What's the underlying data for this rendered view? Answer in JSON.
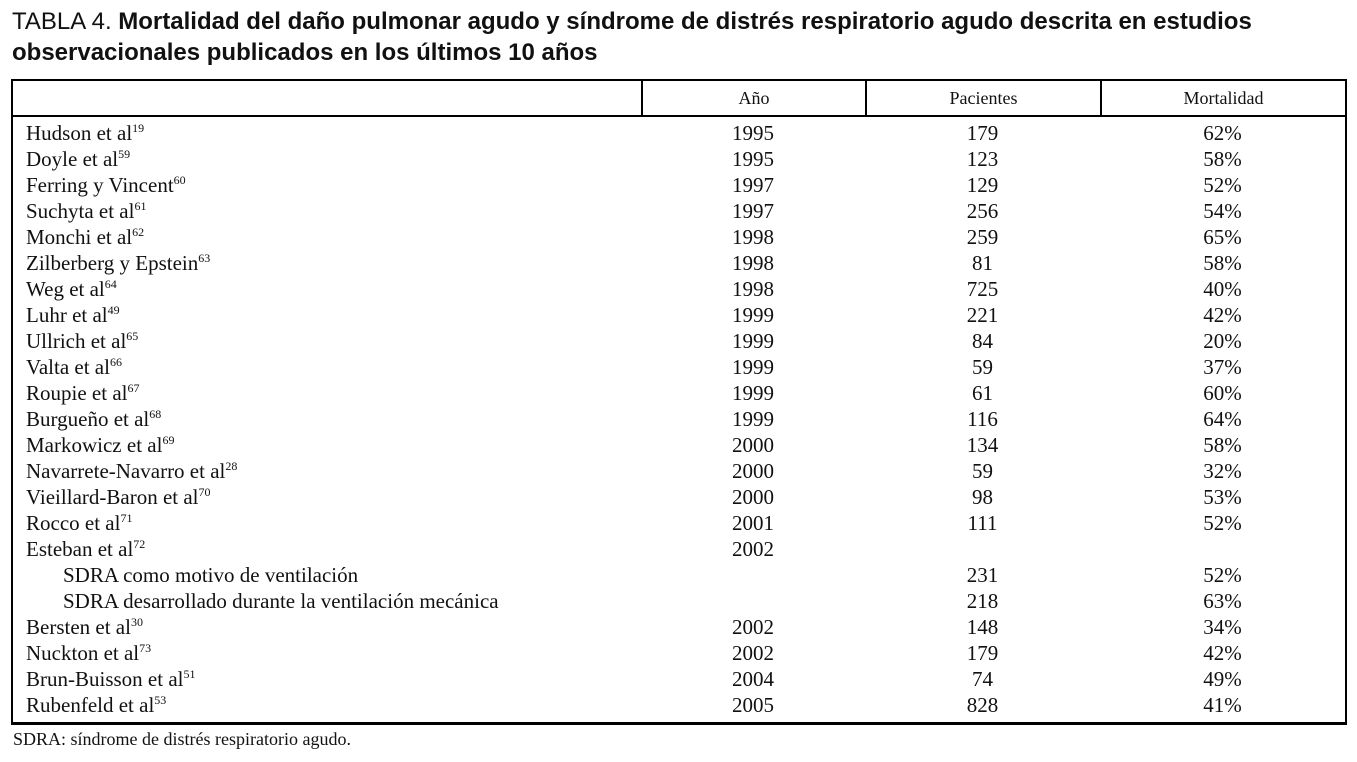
{
  "title": {
    "label": "TABLA 4. ",
    "text": "Mortalidad del daño pulmonar agudo y síndrome de distrés respiratorio agudo descrita en estudios observacionales publicados en los últimos 10 años"
  },
  "table": {
    "columns": [
      "",
      "Año",
      "Pacientes",
      "Mortalidad"
    ],
    "rows": [
      {
        "study": "Hudson et al",
        "ref": "19",
        "year": "1995",
        "patients": "179",
        "mortality": "62%",
        "indent": false
      },
      {
        "study": "Doyle et al",
        "ref": "59",
        "year": "1995",
        "patients": "123",
        "mortality": "58%",
        "indent": false
      },
      {
        "study": "Ferring y Vincent",
        "ref": "60",
        "year": "1997",
        "patients": "129",
        "mortality": "52%",
        "indent": false
      },
      {
        "study": "Suchyta et al",
        "ref": "61",
        "year": "1997",
        "patients": "256",
        "mortality": "54%",
        "indent": false
      },
      {
        "study": "Monchi et al",
        "ref": "62",
        "year": "1998",
        "patients": "259",
        "mortality": "65%",
        "indent": false
      },
      {
        "study": "Zilberberg y Epstein",
        "ref": "63",
        "year": "1998",
        "patients": "81",
        "mortality": "58%",
        "indent": false
      },
      {
        "study": "Weg et al",
        "ref": "64",
        "year": "1998",
        "patients": "725",
        "mortality": "40%",
        "indent": false
      },
      {
        "study": "Luhr et al",
        "ref": "49",
        "year": "1999",
        "patients": "221",
        "mortality": "42%",
        "indent": false
      },
      {
        "study": "Ullrich et al",
        "ref": "65",
        "year": "1999",
        "patients": "84",
        "mortality": "20%",
        "indent": false
      },
      {
        "study": "Valta et al",
        "ref": "66",
        "year": "1999",
        "patients": "59",
        "mortality": "37%",
        "indent": false
      },
      {
        "study": "Roupie et al",
        "ref": "67",
        "year": "1999",
        "patients": "61",
        "mortality": "60%",
        "indent": false
      },
      {
        "study": "Burgueño et al",
        "ref": "68",
        "year": "1999",
        "patients": "116",
        "mortality": "64%",
        "indent": false
      },
      {
        "study": "Markowicz et al",
        "ref": "69",
        "year": "2000",
        "patients": "134",
        "mortality": "58%",
        "indent": false
      },
      {
        "study": "Navarrete-Navarro et al",
        "ref": "28",
        "year": "2000",
        "patients": "59",
        "mortality": "32%",
        "indent": false
      },
      {
        "study": "Vieillard-Baron et al",
        "ref": "70",
        "year": "2000",
        "patients": "98",
        "mortality": "53%",
        "indent": false
      },
      {
        "study": "Rocco et al",
        "ref": "71",
        "year": "2001",
        "patients": "111",
        "mortality": "52%",
        "indent": false
      },
      {
        "study": "Esteban et al",
        "ref": "72",
        "year": "2002",
        "patients": "",
        "mortality": "",
        "indent": false
      },
      {
        "study": "SDRA como motivo de ventilación",
        "ref": "",
        "year": "",
        "patients": "231",
        "mortality": "52%",
        "indent": true
      },
      {
        "study": "SDRA desarrollado durante la ventilación mecánica",
        "ref": "",
        "year": "",
        "patients": "218",
        "mortality": "63%",
        "indent": true
      },
      {
        "study": "Bersten et al",
        "ref": "30",
        "year": "2002",
        "patients": "148",
        "mortality": "34%",
        "indent": false
      },
      {
        "study": "Nuckton et al",
        "ref": "73",
        "year": "2002",
        "patients": "179",
        "mortality": "42%",
        "indent": false
      },
      {
        "study": "Brun-Buisson et al",
        "ref": "51",
        "year": "2004",
        "patients": "74",
        "mortality": "49%",
        "indent": false
      },
      {
        "study": "Rubenfeld et al",
        "ref": "53",
        "year": "2005",
        "patients": "828",
        "mortality": "41%",
        "indent": false
      }
    ]
  },
  "footnote": "SDRA: síndrome de distrés respiratorio agudo."
}
